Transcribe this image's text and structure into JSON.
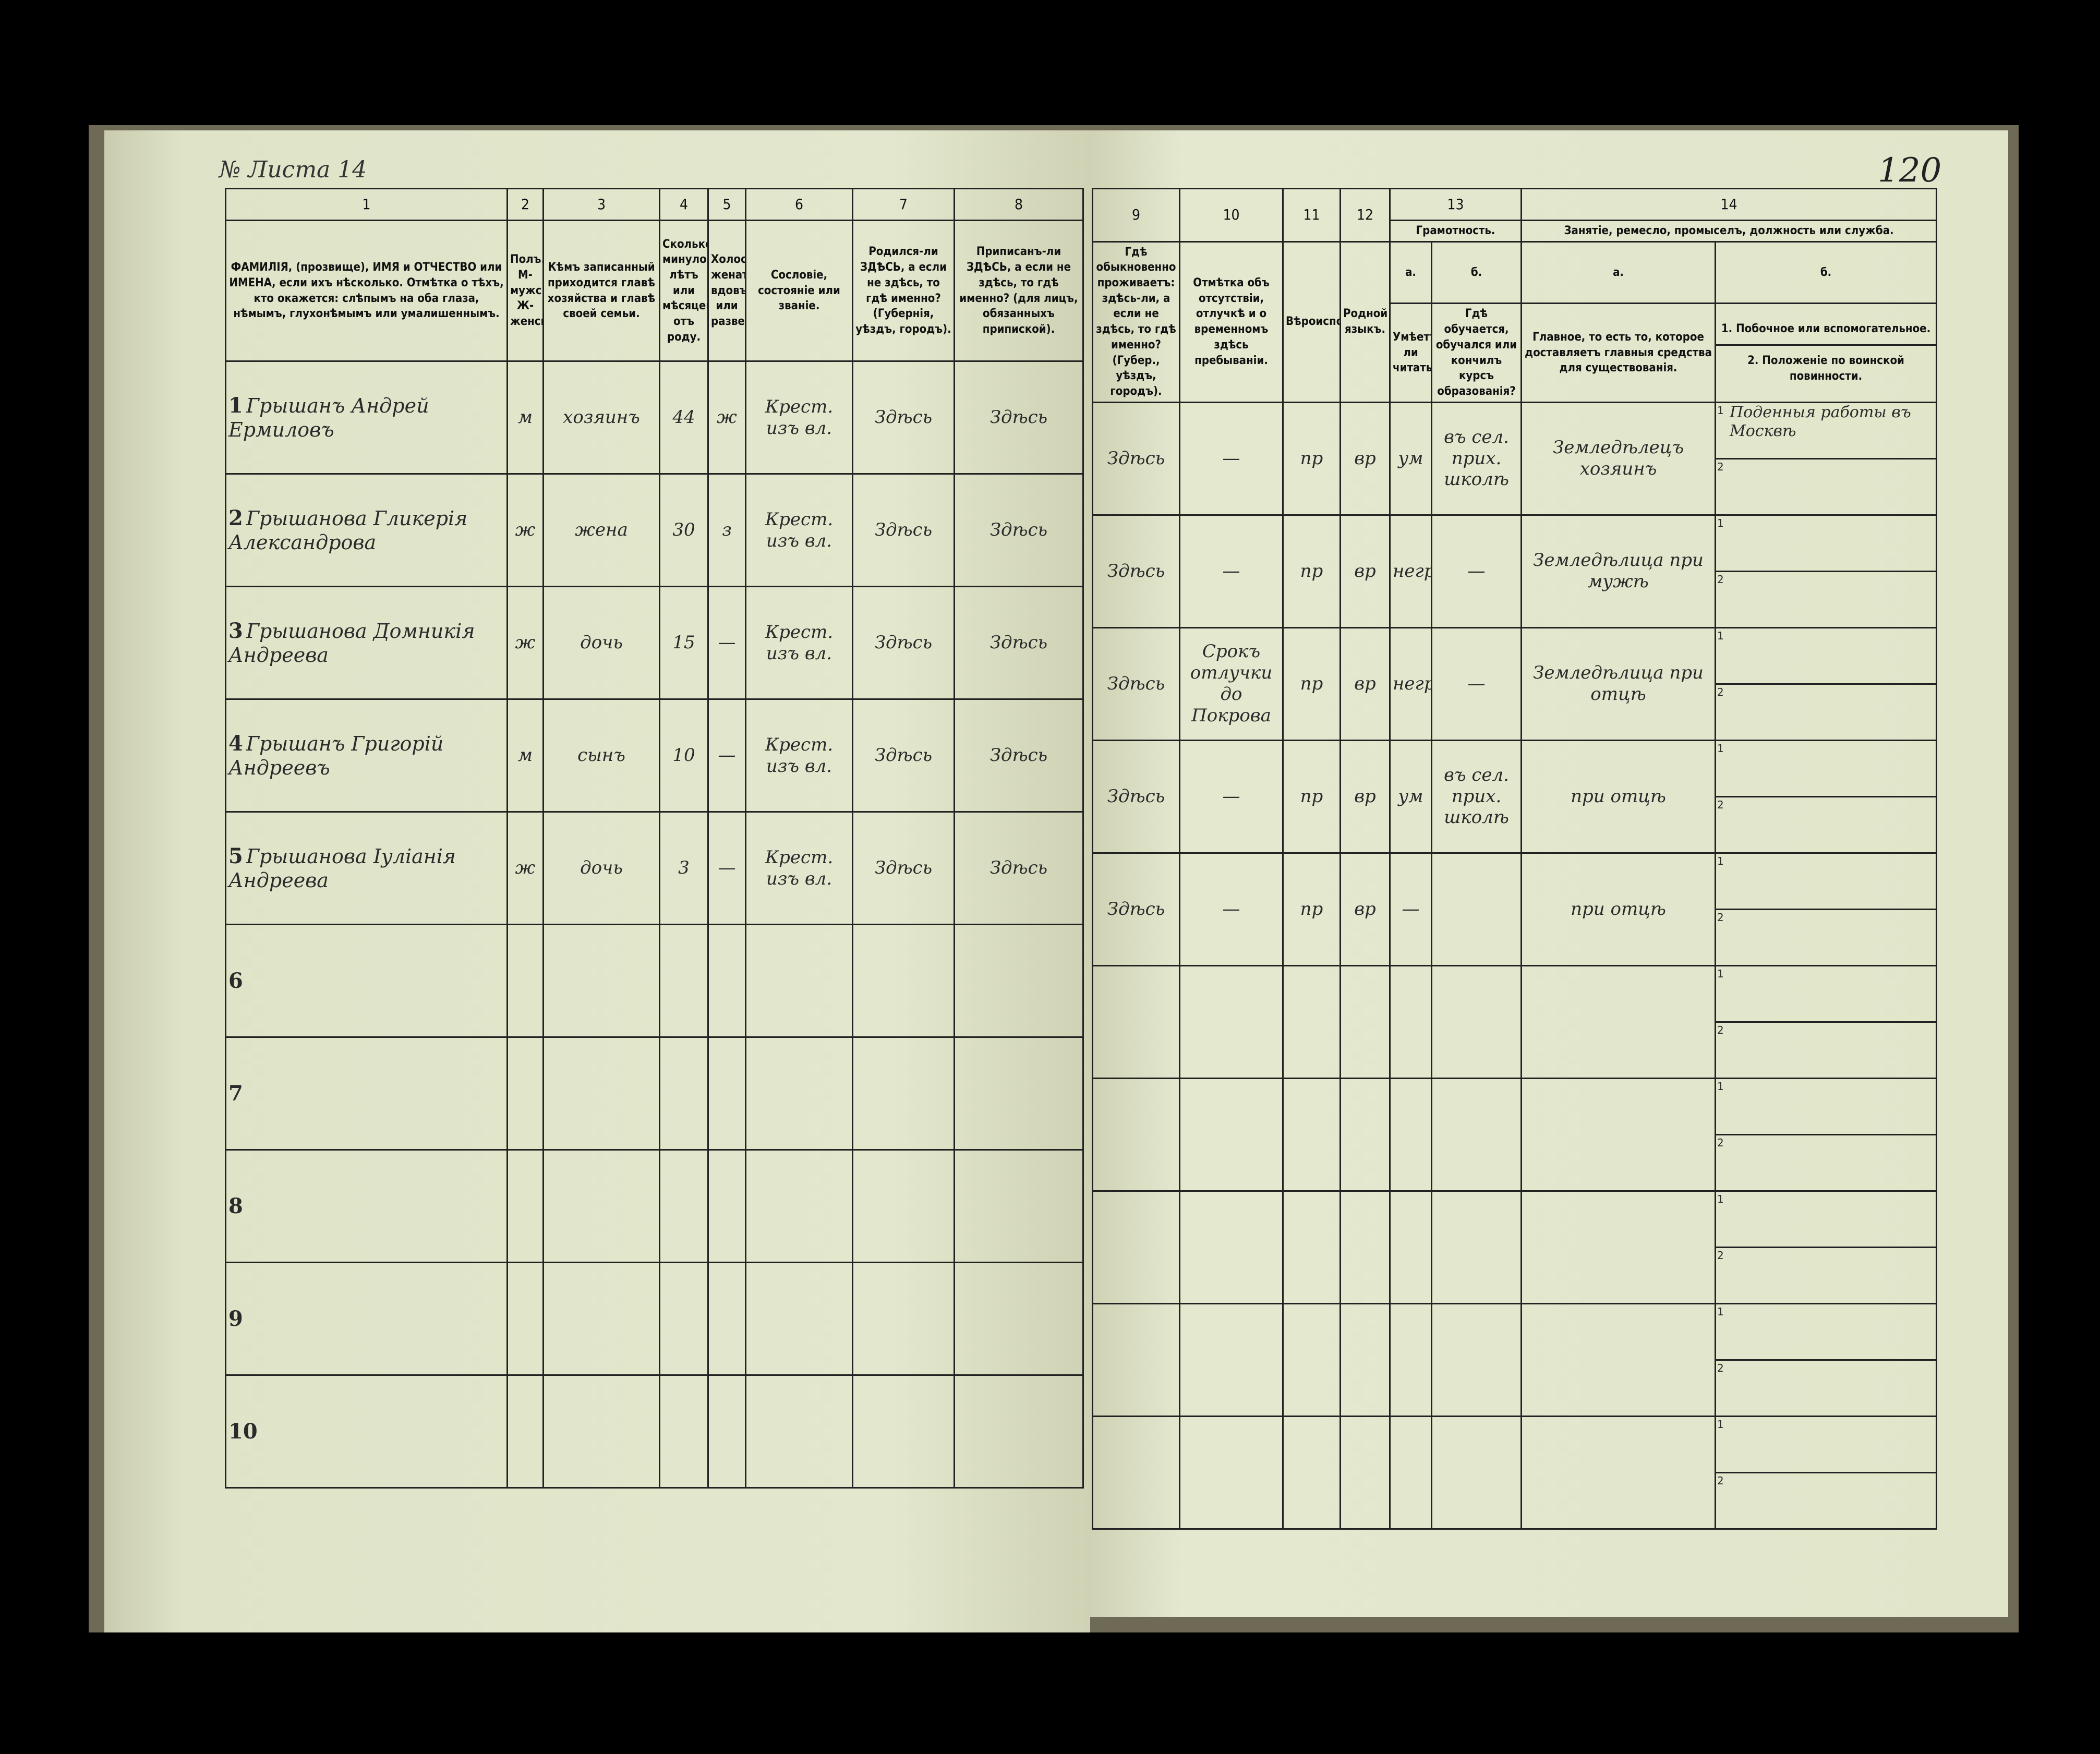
{
  "page_number": "120",
  "sheet_label": "№ Листа 14",
  "left_headers": [
    {
      "num": "1",
      "text": "ФАМИЛІЯ, (прозвище), ИМЯ и ОТЧЕСТВО или ИМЕНА, если ихъ нѣсколько. Отмѣтка о тѣхъ, кто окажется: слѣпымъ на оба глаза, нѣмымъ, глухонѣмымъ или умалишеннымъ."
    },
    {
      "num": "2",
      "text": "Полъ. М-мужской. Ж-женскій."
    },
    {
      "num": "3",
      "text": "Кѣмъ записанный приходится главѣ хозяйства и главѣ своей семьи."
    },
    {
      "num": "4",
      "text": "Сколько минуло лѣтъ или мѣсяцевъ отъ роду."
    },
    {
      "num": "5",
      "text": "Холостъ, женатъ, вдовъ или разведенъ."
    },
    {
      "num": "6",
      "text": "Сословіе, состояніе или званіе."
    },
    {
      "num": "7",
      "text": "Родился-ли ЗДѢСЬ, а если не здѣсь, то гдѣ именно? (Губернія, уѣздъ, городъ)."
    },
    {
      "num": "8",
      "text": "Приписанъ-ли ЗДѢСЬ, а если не здѣсь, то гдѣ именно? (для лицъ, обязанныхъ припиской)."
    }
  ],
  "right_headers": {
    "col9": {
      "num": "9",
      "text": "Гдѣ обыкновенно проживаетъ: здѣсь-ли, а если не здѣсь, то гдѣ именно? (Губер., уѣздъ, городъ)."
    },
    "col10": {
      "num": "10",
      "text": "Отмѣтка объ отсутствіи, отлучкѣ и о временномъ здѣсь пребываніи."
    },
    "col11": {
      "num": "11",
      "text": "Вѣроисповѣданіе."
    },
    "col12": {
      "num": "12",
      "text": "Родной языкъ."
    },
    "col13": {
      "num": "13",
      "text": "Грамотность.",
      "a_label": "а.",
      "a_text": "Умѣетъ-ли читать?",
      "b_label": "б.",
      "b_text": "Гдѣ обучается, обучался или кончилъ курсъ образованія?"
    },
    "col14": {
      "num": "14",
      "text": "Занятіе, ремесло, промыселъ, должность или служба.",
      "a_label": "а.",
      "a_text": "Главное, то есть то, которое доставляетъ главныя средства для существованія.",
      "b_label": "б.",
      "b1_text": "1. Побочное или вспомогательное.",
      "b2_text": "2. Положеніе по воинской повинности."
    }
  },
  "rows": [
    {
      "n": "1",
      "name": "Грышанъ Андрей Ермиловъ",
      "sex": "м",
      "relation": "хозяинъ",
      "age": "44",
      "marital": "ж",
      "estate": "Крест. изъ вл.",
      "birthplace": "Здѣсь",
      "registered": "Здѣсь",
      "residence": "Здѣсь",
      "absence": "—",
      "religion": "пр",
      "language": "вр",
      "literacy_a": "ум",
      "literacy_b": "въ сел. прих. школѣ",
      "occupation_main": "Земледѣлецъ хозяинъ",
      "occupation_b1": "Поденныя работы въ Москвѣ",
      "occupation_b2": ""
    },
    {
      "n": "2",
      "name": "Грышанова Гликерія Александрова",
      "sex": "ж",
      "relation": "жена",
      "age": "30",
      "marital": "з",
      "estate": "Крест. изъ вл.",
      "birthplace": "Здѣсь",
      "registered": "Здѣсь",
      "residence": "Здѣсь",
      "absence": "—",
      "religion": "пр",
      "language": "вр",
      "literacy_a": "негр",
      "literacy_b": "—",
      "occupation_main": "Земледѣлица при мужѣ",
      "occupation_b1": "",
      "occupation_b2": ""
    },
    {
      "n": "3",
      "name": "Грышанова Домникія Андреева",
      "sex": "ж",
      "relation": "дочь",
      "age": "15",
      "marital": "—",
      "estate": "Крест. изъ вл.",
      "birthplace": "Здѣсь",
      "registered": "Здѣсь",
      "residence": "Здѣсь",
      "absence": "Срокъ отлучки до Покрова",
      "religion": "пр",
      "language": "вр",
      "literacy_a": "негр",
      "literacy_b": "—",
      "occupation_main": "Земледѣлица при отцѣ",
      "occupation_b1": "",
      "occupation_b2": ""
    },
    {
      "n": "4",
      "name": "Грышанъ Григорій Андреевъ",
      "sex": "м",
      "relation": "сынъ",
      "age": "10",
      "marital": "—",
      "estate": "Крест. изъ вл.",
      "birthplace": "Здѣсь",
      "registered": "Здѣсь",
      "residence": "Здѣсь",
      "absence": "—",
      "religion": "пр",
      "language": "вр",
      "literacy_a": "ум",
      "literacy_b": "въ сел. прих. школѣ",
      "occupation_main": "при отцѣ",
      "occupation_b1": "",
      "occupation_b2": ""
    },
    {
      "n": "5",
      "name": "Грышанова Іуліанія Андреева",
      "sex": "ж",
      "relation": "дочь",
      "age": "3",
      "marital": "—",
      "estate": "Крест. изъ вл.",
      "birthplace": "Здѣсь",
      "registered": "Здѣсь",
      "residence": "Здѣсь",
      "absence": "—",
      "religion": "пр",
      "language": "вр",
      "literacy_a": "—",
      "literacy_b": "",
      "occupation_main": "при отцѣ",
      "occupation_b1": "",
      "occupation_b2": ""
    },
    {
      "n": "6"
    },
    {
      "n": "7"
    },
    {
      "n": "8"
    },
    {
      "n": "9"
    },
    {
      "n": "10"
    }
  ],
  "sub_labels": {
    "one": "1",
    "two": "2"
  }
}
